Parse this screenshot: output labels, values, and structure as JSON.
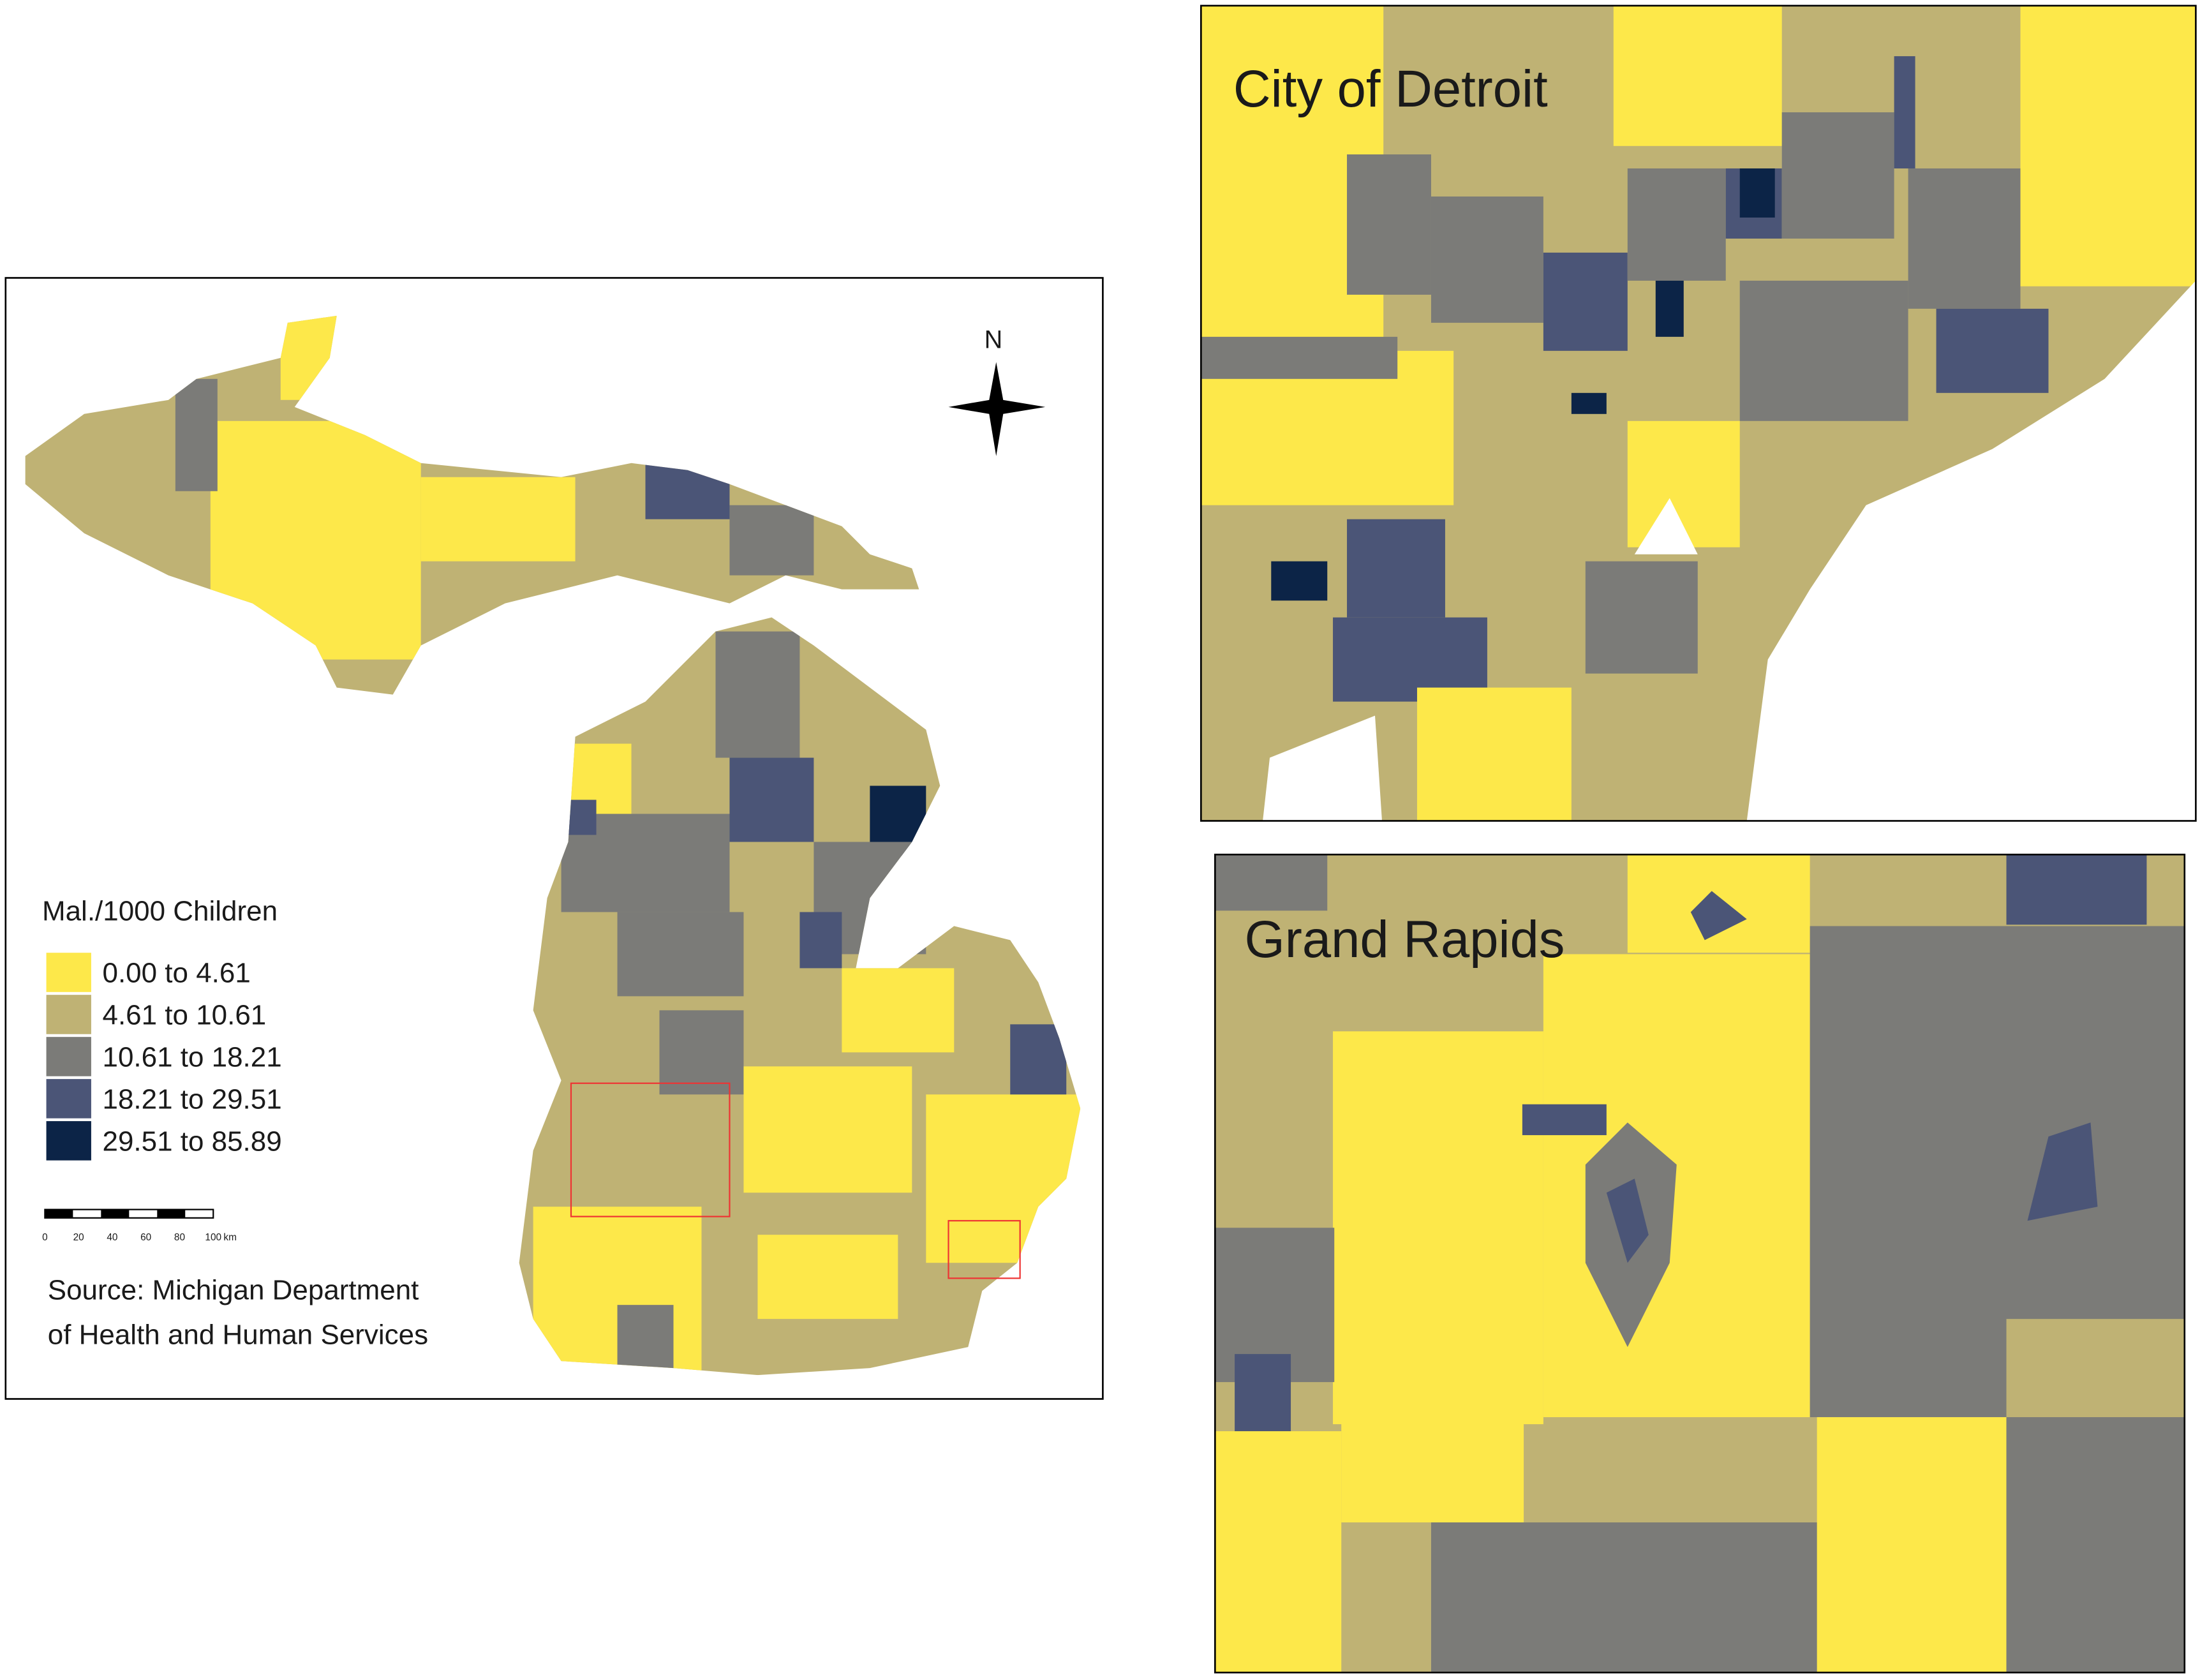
{
  "main_map": {
    "north_label": "N",
    "legend": {
      "title": "Mal./1000 Children",
      "items": [
        {
          "label": "0.00 to 4.61",
          "color": "#fde84a"
        },
        {
          "label": "4.61 to 10.61",
          "color": "#bfb274"
        },
        {
          "label": "10.61 to 18.21",
          "color": "#7b7b78"
        },
        {
          "label": "18.21 to 29.51",
          "color": "#4b5577"
        },
        {
          "label": "29.51 to 85.89",
          "color": "#0c2447"
        }
      ]
    },
    "scale_bar": {
      "labels": [
        "0",
        "20",
        "40",
        "60",
        "80",
        "100"
      ],
      "unit": "km"
    },
    "source": [
      "Source: Michigan Department",
      "of Health and Human Services"
    ]
  },
  "insets": [
    {
      "title": "City of Detroit"
    },
    {
      "title": "Grand Rapids"
    }
  ]
}
